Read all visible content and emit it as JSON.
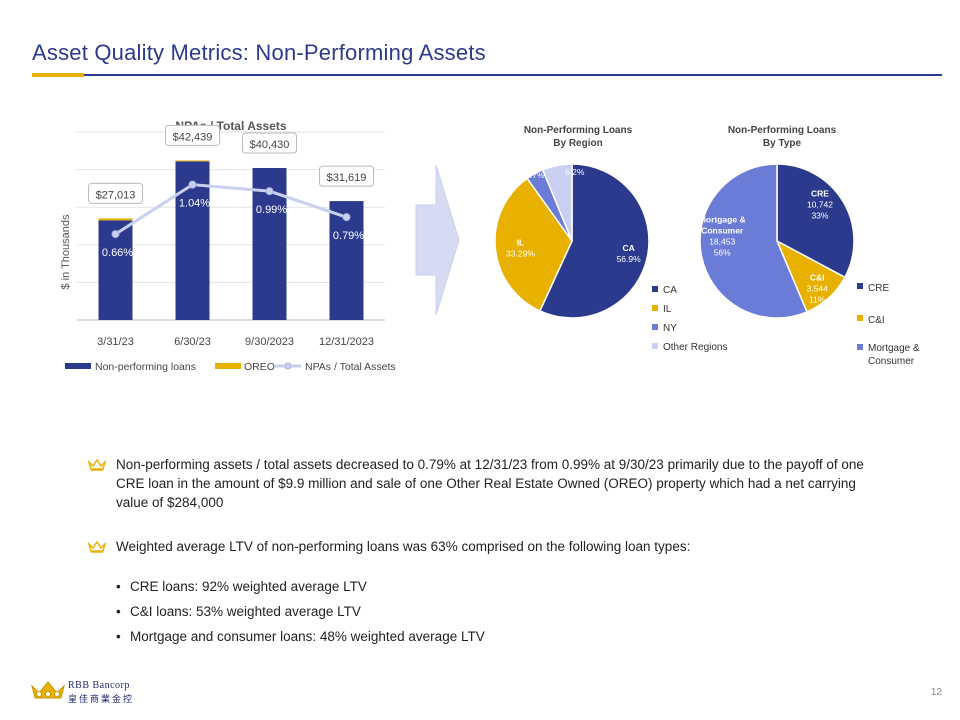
{
  "page": {
    "title": "Asset Quality Metrics:  Non-Performing Assets",
    "page_number": "12"
  },
  "logo": {
    "name": "RBB Bancorp",
    "chinese": "皇佳商業金控"
  },
  "colors": {
    "title": "#2b3a8c",
    "accent": "#e8b100",
    "npl": "#2b3a8c",
    "oreo": "#e8b100",
    "ratio_line": "#c8cff0",
    "ca": "#2b3a8c",
    "il": "#e8b100",
    "ny": "#6b7cd6",
    "other": "#c8cff0",
    "cre": "#2b3a8c",
    "ci": "#e8b100",
    "mortgage": "#6b7cd6"
  },
  "chart_data": [
    {
      "type": "bar",
      "title": "NPAs / Total Assets",
      "ylabel": "$ in Thousands",
      "categories": [
        "3/31/23",
        "6/30/23",
        "9/30/2023",
        "12/31/2023"
      ],
      "series": [
        {
          "name": "Non-performing loans",
          "values": [
            26500,
            42200,
            40430,
            31619
          ]
        },
        {
          "name": "OREO",
          "values": [
            513,
            239,
            0,
            0
          ]
        }
      ],
      "totals": [
        27013,
        42439,
        40430,
        31619
      ],
      "total_labels": [
        "$27,013",
        "$42,439",
        "$40,430",
        "$31,619"
      ],
      "ratio_series": {
        "name": "NPAs / Total Assets",
        "values": [
          0.66,
          1.04,
          0.99,
          0.79
        ],
        "labels": [
          "0.66%",
          "1.04%",
          "0.99%",
          "0.79%"
        ]
      },
      "ylim": [
        0,
        50000
      ],
      "grid": true,
      "legend_placement": "bottom"
    },
    {
      "type": "pie",
      "title": "Non-Performing Loans",
      "subtitle": "By Region",
      "slices": [
        {
          "label": "CA",
          "value": 56.9,
          "text": "56.9%"
        },
        {
          "label": "IL",
          "value": 33.29,
          "text": "33.29%"
        },
        {
          "label": "NY",
          "value": 3.7,
          "text": "3.7%"
        },
        {
          "label": "Other Regions",
          "value": 6.2,
          "text": "6.2%"
        }
      ],
      "legend_placement": "right"
    },
    {
      "type": "pie",
      "title": "Non-Performing Loans",
      "subtitle": "By Type",
      "slices": [
        {
          "label": "CRE",
          "value": 10742,
          "amount": "10,742",
          "pct": "33%"
        },
        {
          "label": "C&I",
          "value": 3544,
          "amount": "3,544",
          "pct": "11%"
        },
        {
          "label": "Mortgage & Consumer",
          "value": 18453,
          "amount": "18,453",
          "pct": "56%"
        }
      ],
      "legend_labels": [
        "CRE",
        "C&I",
        "Mortgage &",
        "Consumer"
      ],
      "slice_label_lines": {
        "mortgage": [
          "Mortgage &",
          "Consumer"
        ]
      },
      "legend_placement": "right"
    }
  ],
  "bullets": [
    {
      "text": "Non-performing assets / total assets decreased to 0.79% at 12/31/23 from 0.99% at 9/30/23 primarily due to the payoff of one CRE loan in the amount of $9.9 million and sale of one Other Real Estate Owned (OREO) property which had a net carrying value of $284,000"
    },
    {
      "text": "Weighted average LTV of non-performing loans was 63% comprised on the following loan types:",
      "subs": [
        "CRE loans:  92% weighted average LTV",
        "C&I loans:  53% weighted average LTV",
        "Mortgage and consumer loans: 48% weighted average LTV"
      ]
    }
  ]
}
